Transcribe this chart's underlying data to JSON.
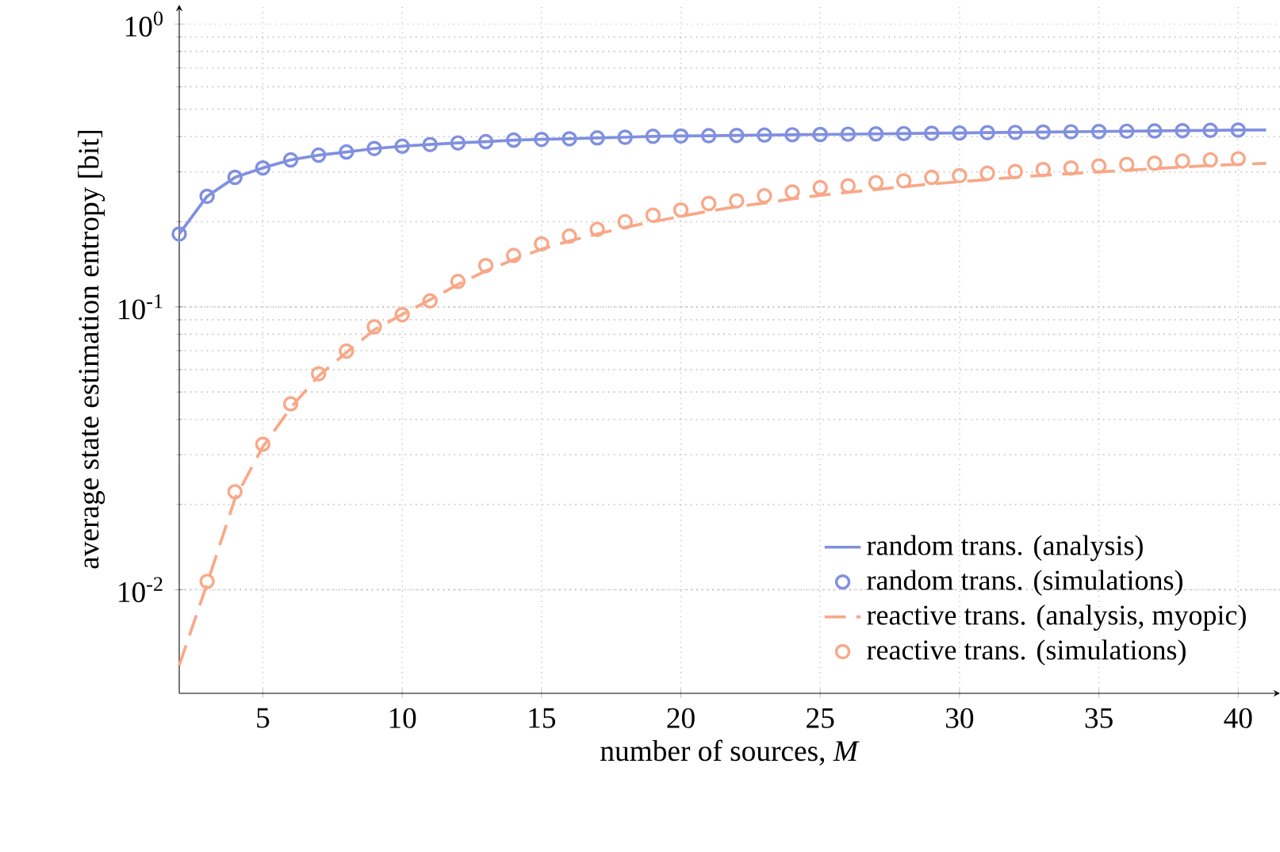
{
  "chart_data": {
    "type": "line",
    "xlabel": "number of sources, *M*",
    "ylabel": "average state estimation entropy [bit]",
    "xlim": [
      2,
      41.5
    ],
    "ylim": [
      0.0043,
      1.17
    ],
    "log": "y",
    "xticks": [
      5,
      10,
      15,
      20,
      25,
      30,
      35,
      40
    ],
    "yticks": [
      {
        "value": 0.01,
        "label": "10$^{-2}$"
      },
      {
        "value": 0.1,
        "label": "10$^{-1}$"
      },
      {
        "value": 1,
        "label": "10$^{0}$"
      }
    ],
    "grid": true,
    "legend": "bottom right",
    "series": [
      {
        "name": "random trans. (analysis)",
        "type": "line",
        "line_style": "solid",
        "marker": "none",
        "color": "#8090e0",
        "x": [
          2,
          3,
          4,
          5,
          6,
          7,
          8,
          9,
          10,
          11,
          12,
          13,
          14,
          15,
          16,
          17,
          18,
          19,
          20,
          21,
          22,
          23,
          24,
          25,
          26,
          27,
          28,
          29,
          30,
          31,
          32,
          33,
          34,
          35,
          36,
          37,
          38,
          39,
          40,
          41
        ],
        "values": [
          0.181,
          0.246,
          0.287,
          0.31,
          0.331,
          0.344,
          0.353,
          0.363,
          0.37,
          0.375,
          0.38,
          0.384,
          0.389,
          0.391,
          0.393,
          0.396,
          0.398,
          0.401,
          0.402,
          0.403,
          0.404,
          0.405,
          0.406,
          0.407,
          0.408,
          0.409,
          0.41,
          0.411,
          0.412,
          0.413,
          0.414,
          0.415,
          0.416,
          0.417,
          0.418,
          0.419,
          0.42,
          0.421,
          0.422,
          0.422
        ]
      },
      {
        "name": "random trans. (simulations)",
        "type": "scatter",
        "marker": "circle",
        "color": "#8090e0",
        "x": [
          2,
          3,
          4,
          5,
          6,
          7,
          8,
          9,
          10,
          11,
          12,
          13,
          14,
          15,
          16,
          17,
          18,
          19,
          20,
          21,
          22,
          23,
          24,
          25,
          26,
          27,
          28,
          29,
          30,
          31,
          32,
          33,
          34,
          35,
          36,
          37,
          38,
          39,
          40
        ],
        "values": [
          0.181,
          0.246,
          0.287,
          0.31,
          0.331,
          0.344,
          0.353,
          0.363,
          0.37,
          0.375,
          0.38,
          0.384,
          0.389,
          0.391,
          0.393,
          0.396,
          0.398,
          0.401,
          0.402,
          0.403,
          0.404,
          0.405,
          0.406,
          0.407,
          0.408,
          0.409,
          0.41,
          0.411,
          0.412,
          0.413,
          0.414,
          0.415,
          0.416,
          0.417,
          0.418,
          0.419,
          0.42,
          0.421,
          0.422
        ]
      },
      {
        "name": "reactive trans. (analysis, myopic)",
        "type": "line",
        "line_style": "dashed",
        "marker": "none",
        "color": "#f8a888",
        "x": [
          2,
          3,
          4,
          5,
          6,
          7,
          8,
          9,
          10,
          11,
          12,
          13,
          14,
          15,
          16,
          17,
          18,
          19,
          20,
          21,
          22,
          23,
          24,
          25,
          26,
          27,
          28,
          29,
          30,
          31,
          32,
          33,
          34,
          35,
          36,
          37,
          38,
          39,
          40,
          41
        ],
        "values": [
          0.0054,
          0.0105,
          0.021,
          0.032,
          0.044,
          0.057,
          0.069,
          0.083,
          0.094,
          0.106,
          0.12,
          0.134,
          0.147,
          0.16,
          0.171,
          0.181,
          0.191,
          0.2,
          0.209,
          0.218,
          0.226,
          0.233,
          0.241,
          0.248,
          0.254,
          0.26,
          0.266,
          0.272,
          0.277,
          0.282,
          0.287,
          0.292,
          0.296,
          0.3,
          0.304,
          0.308,
          0.312,
          0.316,
          0.319,
          0.322
        ]
      },
      {
        "name": "reactive trans. (simulations)",
        "type": "scatter",
        "marker": "circle",
        "color": "#f8a888",
        "x": [
          3,
          4,
          5,
          6,
          7,
          8,
          9,
          10,
          11,
          12,
          13,
          14,
          15,
          16,
          17,
          18,
          19,
          20,
          21,
          22,
          23,
          24,
          25,
          26,
          27,
          28,
          29,
          30,
          31,
          32,
          33,
          34,
          35,
          36,
          37,
          38,
          39,
          40
        ],
        "values": [
          0.0107,
          0.0222,
          0.0327,
          0.0454,
          0.058,
          0.0698,
          0.085,
          0.0938,
          0.105,
          0.123,
          0.14,
          0.152,
          0.167,
          0.178,
          0.188,
          0.2,
          0.211,
          0.22,
          0.232,
          0.237,
          0.247,
          0.255,
          0.264,
          0.268,
          0.275,
          0.279,
          0.287,
          0.291,
          0.297,
          0.301,
          0.306,
          0.31,
          0.315,
          0.319,
          0.322,
          0.328,
          0.331,
          0.334
        ]
      }
    ]
  }
}
